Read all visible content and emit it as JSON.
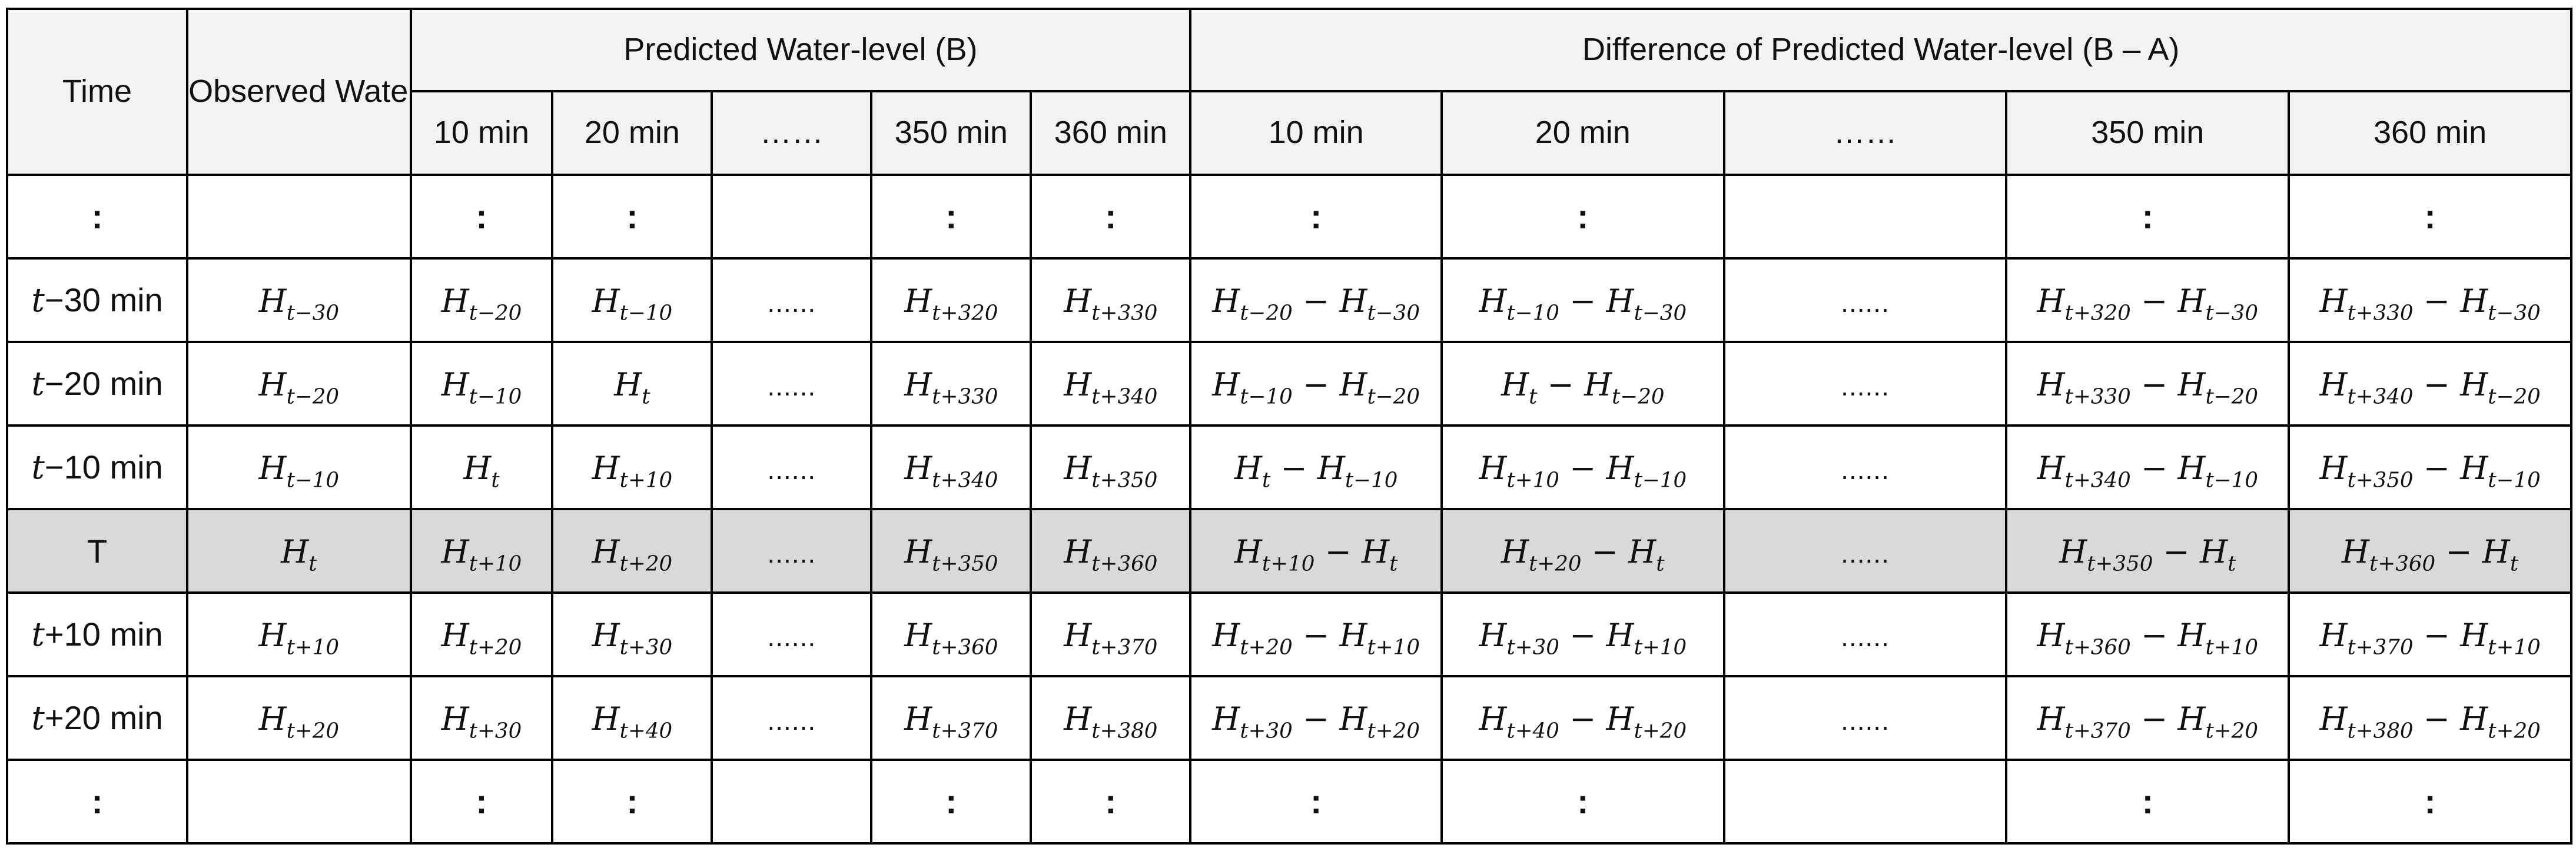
{
  "headers": {
    "time": "Time",
    "observed": "Observed Water-level (A)",
    "predicted": "Predicted Water-level (B)",
    "difference": "Difference of Predicted Water-level (B – A)",
    "predicted_cols": [
      "10 min",
      "20 min",
      "……",
      "350 min",
      "360 min"
    ],
    "difference_cols": [
      "10 min",
      "20 min",
      "……",
      "350 min",
      "360 min"
    ]
  },
  "vdots": ":",
  "dots": "......",
  "highlight_color": "#d9d9d9",
  "header_color": "#f2f2f2",
  "rows": [
    {
      "time_var": "t",
      "time_rest": "−30 min",
      "obs": "t−30",
      "pred": [
        "t−20",
        "t−10",
        "t+320",
        "t+330"
      ],
      "diff": [
        [
          "t−20",
          "t−30"
        ],
        [
          "t−10",
          "t−30"
        ],
        [
          "t+320",
          "t−30"
        ],
        [
          "t+330",
          "t−30"
        ]
      ]
    },
    {
      "time_var": "t",
      "time_rest": "−20 min",
      "obs": "t−20",
      "pred": [
        "t−10",
        "t",
        "t+330",
        "t+340"
      ],
      "diff": [
        [
          "t−10",
          "t−20"
        ],
        [
          "t",
          "t−20"
        ],
        [
          "t+330",
          "t−20"
        ],
        [
          "t+340",
          "t−20"
        ]
      ]
    },
    {
      "time_var": "t",
      "time_rest": "−10 min",
      "obs": "t−10",
      "pred": [
        "t",
        "t+10",
        "t+340",
        "t+350"
      ],
      "diff": [
        [
          "t",
          "t−10"
        ],
        [
          "t+10",
          "t−10"
        ],
        [
          "t+340",
          "t−10"
        ],
        [
          "t+350",
          "t−10"
        ]
      ]
    },
    {
      "time_var": "",
      "time_rest": "T",
      "obs": "t",
      "pred": [
        "t+10",
        "t+20",
        "t+350",
        "t+360"
      ],
      "diff": [
        [
          "t+10",
          "t"
        ],
        [
          "t+20",
          "t"
        ],
        [
          "t+350",
          "t"
        ],
        [
          "t+360",
          "t"
        ]
      ]
    },
    {
      "time_var": "t",
      "time_rest": "+10 min",
      "obs": "t+10",
      "pred": [
        "t+20",
        "t+30",
        "t+360",
        "t+370"
      ],
      "diff": [
        [
          "t+20",
          "t+10"
        ],
        [
          "t+30",
          "t+10"
        ],
        [
          "t+360",
          "t+10"
        ],
        [
          "t+370",
          "t+10"
        ]
      ]
    },
    {
      "time_var": "t",
      "time_rest": "+20 min",
      "obs": "t+20",
      "pred": [
        "t+30",
        "t+40",
        "t+370",
        "t+380"
      ],
      "diff": [
        [
          "t+30",
          "t+20"
        ],
        [
          "t+40",
          "t+20"
        ],
        [
          "t+370",
          "t+20"
        ],
        [
          "t+380",
          "t+20"
        ]
      ]
    }
  ]
}
